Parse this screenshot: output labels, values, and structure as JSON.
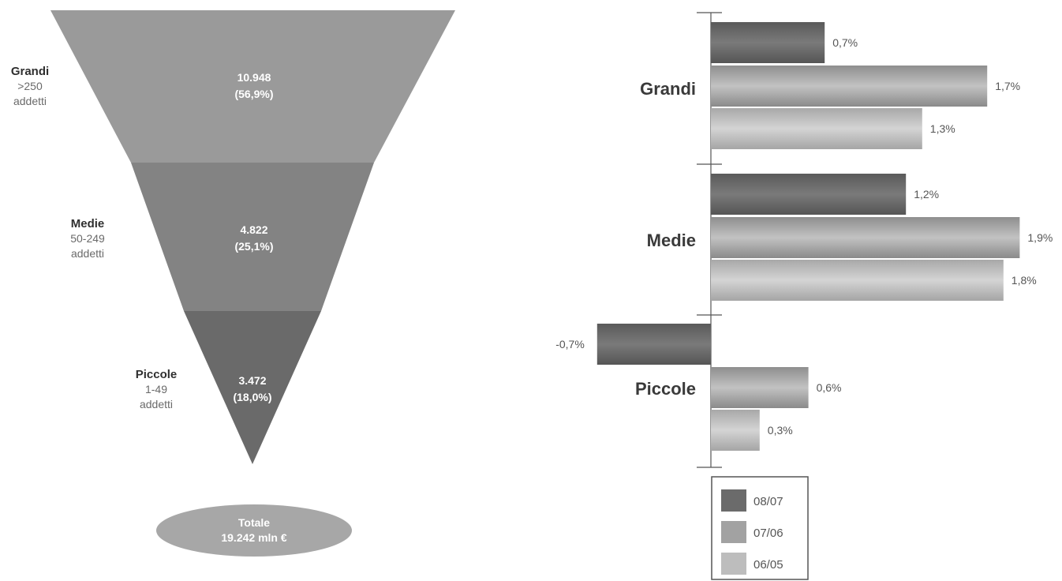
{
  "colors": {
    "seg_grandi": "#9a9a9a",
    "seg_medie": "#838383",
    "seg_piccole": "#6a6a6a",
    "total_ellipse": "#a7a7a7",
    "series_08_07": "#6b6b6b",
    "series_07_06": "#a2a2a2",
    "series_06_05": "#bdbdbd",
    "axis": "#555555"
  },
  "funnel": {
    "segments": [
      {
        "name": "Grandi",
        "sub1": ">250",
        "sub2": "addetti",
        "value": "10.948",
        "share": "(56,9%)"
      },
      {
        "name": "Medie",
        "sub1": "50-249",
        "sub2": "addetti",
        "value": "4.822",
        "share": "(25,1%)"
      },
      {
        "name": "Piccole",
        "sub1": "1-49",
        "sub2": "addetti",
        "value": "3.472",
        "share": "(18,0%)"
      }
    ],
    "total": {
      "line1": "Totale",
      "line2": "19.242 mln €"
    }
  },
  "chart_data": {
    "type": "bar",
    "orientation": "horizontal",
    "categories": [
      "Grandi",
      "Medie",
      "Piccole"
    ],
    "series": [
      {
        "name": "08/07",
        "values": [
          0.7,
          1.2,
          -0.7
        ],
        "labels": [
          "0,7%",
          "1,2%",
          "-0,7%"
        ]
      },
      {
        "name": "07/06",
        "values": [
          1.7,
          1.9,
          0.6
        ],
        "labels": [
          "1,7%",
          "1,9%",
          "0,6%"
        ]
      },
      {
        "name": "06/05",
        "values": [
          1.3,
          1.8,
          0.3
        ],
        "labels": [
          "1,3%",
          "1,8%",
          "0,3%"
        ]
      }
    ],
    "xlim": [
      -0.7,
      1.9
    ],
    "grid": false,
    "legend_position": "bottom"
  }
}
